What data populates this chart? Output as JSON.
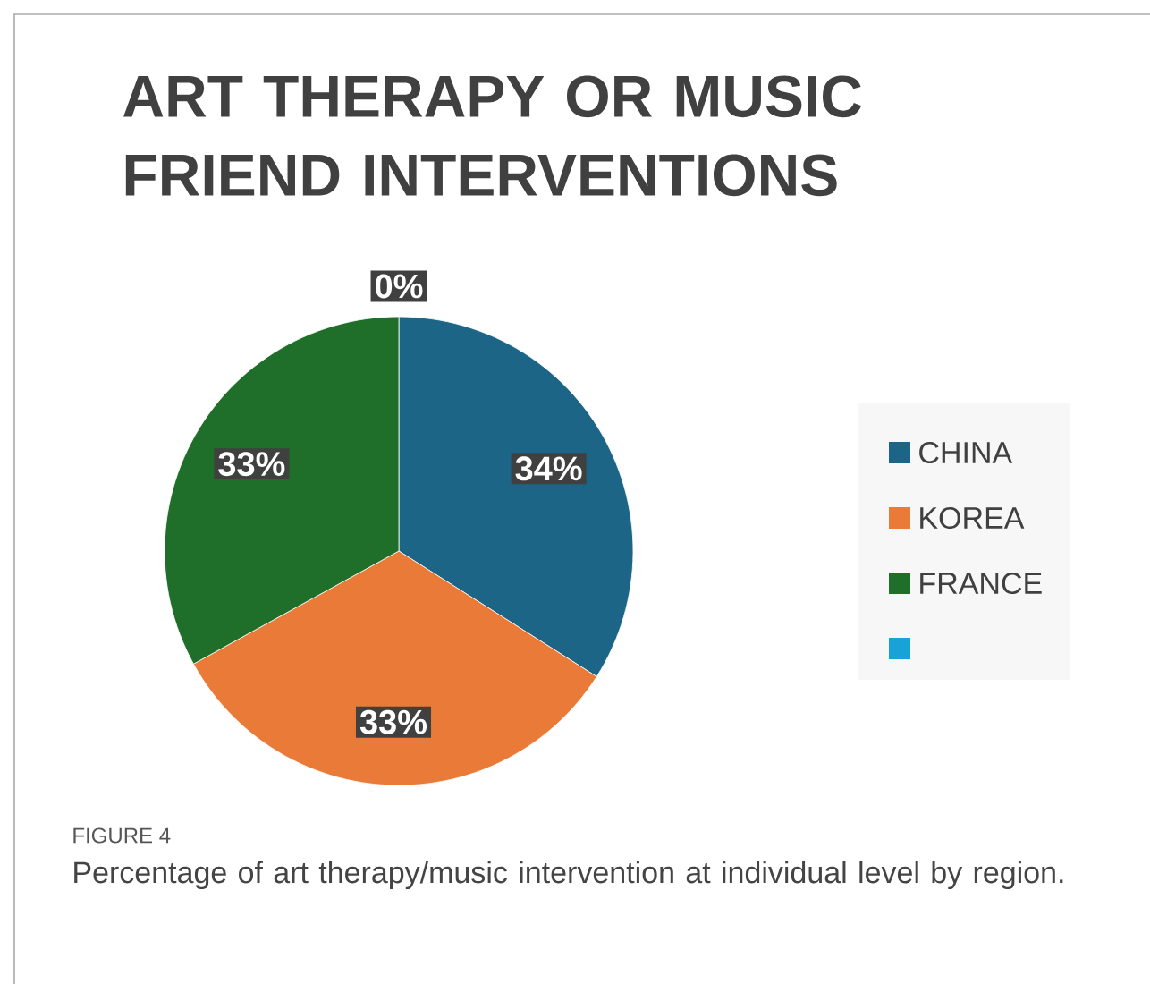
{
  "chart_data": {
    "type": "pie",
    "title": "ART THERAPY OR MUSIC FRIEND INTERVENTIONS",
    "categories": [
      "CHINA",
      "KOREA",
      "FRANCE",
      null
    ],
    "values": [
      34,
      33,
      33,
      0
    ],
    "value_labels": [
      "34%",
      "33%",
      "33%",
      "0%"
    ],
    "colors": [
      "#1d6587",
      "#ea7a38",
      "#1f6e2a",
      "#17a2d8"
    ],
    "legend": "right",
    "annotations": [
      "FIGURE 4",
      "Percentage of art therapy/music intervention at individual level by region."
    ]
  }
}
